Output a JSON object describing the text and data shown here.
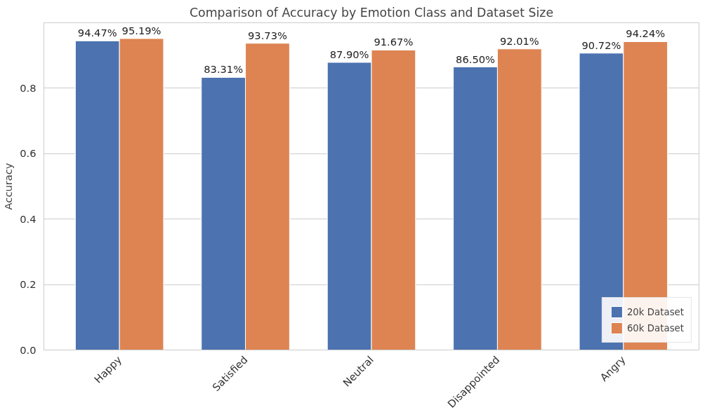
{
  "chart_data": {
    "type": "bar",
    "title": "Comparison of Accuracy by Emotion Class and Dataset Size",
    "ylabel": "Accuracy",
    "categories": [
      "Happy",
      "Satisfied",
      "Neutral",
      "Disappointed",
      "Angry"
    ],
    "series": [
      {
        "name": "20k Dataset",
        "color": "#4c72b0",
        "values": [
          0.9447,
          0.8331,
          0.879,
          0.865,
          0.9072
        ],
        "value_labels": [
          "94.47%",
          "83.31%",
          "87.90%",
          "86.50%",
          "90.72%"
        ]
      },
      {
        "name": "60k Dataset",
        "color": "#dd8452",
        "values": [
          0.9519,
          0.9373,
          0.9167,
          0.9201,
          0.9424
        ],
        "value_labels": [
          "95.19%",
          "93.73%",
          "91.67%",
          "92.01%",
          "94.24%"
        ]
      }
    ],
    "ylim": [
      0,
      1.0
    ],
    "yticks": [
      {
        "value": 0,
        "label": "0.0"
      },
      0.2,
      0.4,
      0.6,
      0.8
    ],
    "grid": "y",
    "legend": "bottom right"
  }
}
